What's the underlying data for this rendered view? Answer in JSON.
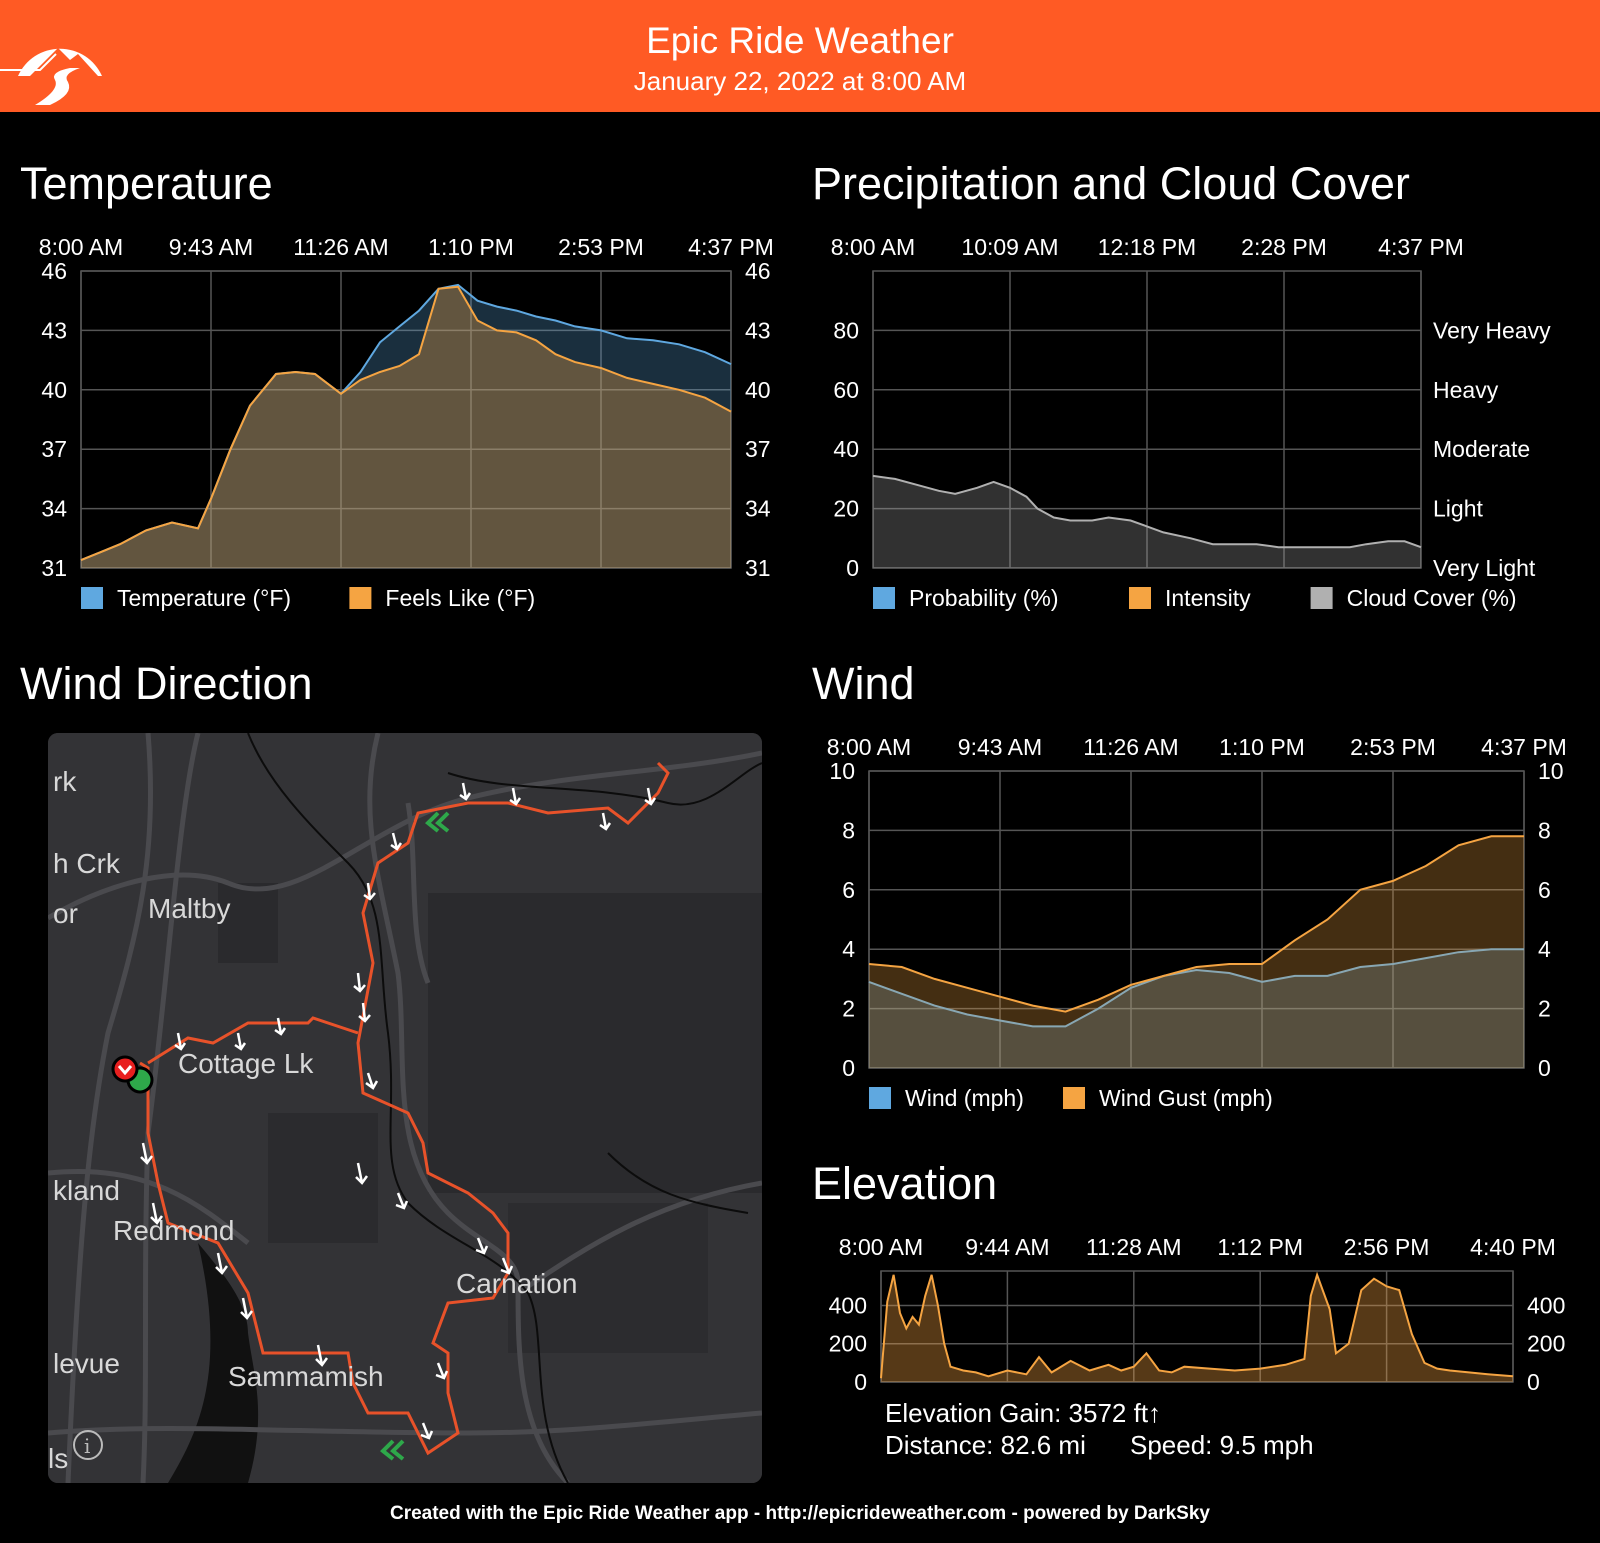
{
  "header": {
    "title": "Epic Ride Weather",
    "datetime": "January 22, 2022 at 8:00 AM",
    "brand_color": "#ff5a24"
  },
  "sections": {
    "temperature": "Temperature",
    "precip": "Precipitation and Cloud Cover",
    "wind_direction": "Wind Direction",
    "wind": "Wind",
    "elevation": "Elevation"
  },
  "chart_data": [
    {
      "id": "temperature",
      "type": "area",
      "title": "Temperature",
      "x_tick_labels": [
        "8:00 AM",
        "9:43 AM",
        "11:26 AM",
        "1:10 PM",
        "2:53 PM",
        "4:37 PM"
      ],
      "y_ticks": [
        31,
        34,
        37,
        40,
        43,
        46
      ],
      "ylim": [
        31,
        46
      ],
      "y_tick_labels_right": [
        "31",
        "34",
        "37",
        "40",
        "43",
        "46"
      ],
      "x_positions": [
        0,
        0.03,
        0.06,
        0.1,
        0.14,
        0.18,
        0.2,
        0.23,
        0.26,
        0.3,
        0.33,
        0.36,
        0.4,
        0.43,
        0.46,
        0.49,
        0.52,
        0.55,
        0.58,
        0.61,
        0.64,
        0.67,
        0.7,
        0.73,
        0.76,
        0.8,
        0.84,
        0.88,
        0.92,
        0.96,
        1.0
      ],
      "series": [
        {
          "name": "Temperature (°F)",
          "color": "#5fa8e0",
          "values": [
            31.4,
            31.8,
            32.2,
            32.9,
            33.3,
            33.0,
            34.5,
            37.0,
            39.2,
            40.8,
            40.9,
            40.8,
            39.8,
            40.9,
            42.4,
            43.2,
            44.0,
            45.1,
            45.3,
            44.5,
            44.2,
            44.0,
            43.7,
            43.5,
            43.2,
            43.0,
            42.6,
            42.5,
            42.3,
            41.9,
            41.3
          ]
        },
        {
          "name": "Feels Like (°F)",
          "color": "#f5a442",
          "values": [
            31.4,
            31.8,
            32.2,
            32.9,
            33.3,
            33.0,
            34.5,
            37.0,
            39.2,
            40.8,
            40.9,
            40.8,
            39.8,
            40.5,
            40.9,
            41.2,
            41.8,
            45.1,
            45.2,
            43.5,
            43.0,
            42.9,
            42.5,
            41.8,
            41.4,
            41.1,
            40.6,
            40.3,
            40.0,
            39.6,
            38.9
          ]
        }
      ]
    },
    {
      "id": "precip",
      "type": "area",
      "title": "Precipitation and Cloud Cover",
      "x_tick_labels": [
        "8:00 AM",
        "10:09 AM",
        "12:18 PM",
        "2:28 PM",
        "4:37 PM"
      ],
      "y_ticks": [
        0,
        20,
        40,
        60,
        80
      ],
      "ylim": [
        0,
        100
      ],
      "right_labels": [
        "Very Light",
        "Light",
        "Moderate",
        "Heavy",
        "Very Heavy"
      ],
      "x_positions": [
        0,
        0.04,
        0.08,
        0.12,
        0.15,
        0.19,
        0.22,
        0.25,
        0.28,
        0.3,
        0.33,
        0.36,
        0.4,
        0.43,
        0.47,
        0.5,
        0.53,
        0.58,
        0.62,
        0.66,
        0.7,
        0.74,
        0.79,
        0.83,
        0.87,
        0.9,
        0.94,
        0.97,
        1.0
      ],
      "series": [
        {
          "name": "Probability (%)",
          "color": "#5fa8e0",
          "values": []
        },
        {
          "name": "Intensity",
          "color": "#f5a442",
          "values": []
        },
        {
          "name": "Cloud Cover (%)",
          "color": "#b0b0b0",
          "values": [
            31,
            30,
            28,
            26,
            25,
            27,
            29,
            27,
            24,
            20,
            17,
            16,
            16,
            17,
            16,
            14,
            12,
            10,
            8,
            8,
            8,
            7,
            7,
            7,
            7,
            8,
            9,
            9,
            7
          ]
        }
      ]
    },
    {
      "id": "wind",
      "type": "area",
      "title": "Wind",
      "x_tick_labels": [
        "8:00 AM",
        "9:43 AM",
        "11:26 AM",
        "1:10 PM",
        "2:53 PM",
        "4:37 PM"
      ],
      "y_ticks": [
        0,
        2,
        4,
        6,
        8,
        10
      ],
      "ylim": [
        0,
        10
      ],
      "y_tick_labels_right": [
        "0",
        "2",
        "4",
        "6",
        "8",
        "10"
      ],
      "x_positions": [
        0,
        0.05,
        0.1,
        0.15,
        0.2,
        0.25,
        0.3,
        0.35,
        0.4,
        0.45,
        0.5,
        0.55,
        0.6,
        0.65,
        0.7,
        0.75,
        0.8,
        0.85,
        0.9,
        0.95,
        1.0
      ],
      "series": [
        {
          "name": "Wind (mph)",
          "color": "#5fa8e0",
          "values": [
            2.9,
            2.5,
            2.1,
            1.8,
            1.6,
            1.4,
            1.4,
            2.0,
            2.7,
            3.1,
            3.3,
            3.2,
            2.9,
            3.1,
            3.1,
            3.4,
            3.5,
            3.7,
            3.9,
            4.0,
            4.0
          ]
        },
        {
          "name": "Wind Gust (mph)",
          "color": "#f5a442",
          "values": [
            3.5,
            3.4,
            3.0,
            2.7,
            2.4,
            2.1,
            1.9,
            2.3,
            2.8,
            3.1,
            3.4,
            3.5,
            3.5,
            4.3,
            5.0,
            6.0,
            6.3,
            6.8,
            7.5,
            7.8,
            7.8
          ]
        }
      ]
    },
    {
      "id": "elevation",
      "type": "area",
      "title": "Elevation",
      "x_tick_labels": [
        "8:00 AM",
        "9:44 AM",
        "11:28 AM",
        "1:12 PM",
        "2:56 PM",
        "4:40 PM"
      ],
      "y_ticks": [
        0,
        200,
        400
      ],
      "ylim": [
        0,
        580
      ],
      "y_tick_labels_right": [
        "0",
        "200",
        "400"
      ],
      "x_positions": [
        0,
        0.01,
        0.02,
        0.03,
        0.04,
        0.05,
        0.06,
        0.07,
        0.08,
        0.09,
        0.1,
        0.11,
        0.12,
        0.13,
        0.15,
        0.17,
        0.2,
        0.23,
        0.25,
        0.27,
        0.28,
        0.3,
        0.33,
        0.36,
        0.38,
        0.4,
        0.42,
        0.44,
        0.46,
        0.48,
        0.52,
        0.56,
        0.6,
        0.64,
        0.67,
        0.68,
        0.69,
        0.7,
        0.71,
        0.72,
        0.74,
        0.76,
        0.78,
        0.8,
        0.82,
        0.84,
        0.86,
        0.88,
        0.9,
        0.93,
        0.96,
        1.0
      ],
      "series": [
        {
          "name": "Elevation (ft)",
          "color": "#f5a442",
          "values": [
            20,
            420,
            560,
            360,
            280,
            340,
            300,
            450,
            560,
            400,
            200,
            80,
            70,
            60,
            50,
            30,
            60,
            40,
            130,
            50,
            70,
            110,
            60,
            90,
            60,
            80,
            150,
            60,
            50,
            80,
            70,
            60,
            70,
            90,
            120,
            450,
            560,
            470,
            380,
            150,
            200,
            480,
            540,
            500,
            480,
            250,
            100,
            70,
            60,
            50,
            40,
            30
          ]
        }
      ],
      "stats": {
        "gain": "Elevation Gain: 3572 ft↑",
        "distance": "Distance: 82.6 mi",
        "speed": "Speed: 9.5 mph"
      }
    }
  ],
  "map": {
    "place_labels": [
      "rk",
      "h Crk",
      "Maltby",
      "or",
      "Cottage Lk",
      "kland",
      "Redmond",
      "Carnation",
      "levue",
      "Sammamish",
      "ls"
    ],
    "route_color": "#e8522a",
    "info_icon": "info-icon"
  },
  "footer": "Created with the Epic Ride Weather app - http://epicrideweather.com - powered by DarkSky"
}
